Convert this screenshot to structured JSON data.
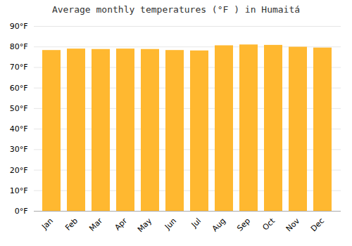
{
  "chart_data": {
    "type": "bar",
    "title": "Average monthly temperatures (°F ) in Humaitá",
    "categories": [
      "Jan",
      "Feb",
      "Mar",
      "Apr",
      "May",
      "Jun",
      "Jul",
      "Aug",
      "Sep",
      "Oct",
      "Nov",
      "Dec"
    ],
    "values": [
      78.3,
      79.0,
      78.8,
      79.0,
      78.8,
      78.3,
      78.1,
      80.6,
      81.0,
      80.8,
      79.9,
      79.5
    ],
    "color": "#FFB830",
    "ylim": [
      0,
      90
    ],
    "yticks": [
      {
        "value": 0,
        "label": "0°F"
      },
      {
        "value": 10,
        "label": "10°F"
      },
      {
        "value": 20,
        "label": "20°F"
      },
      {
        "value": 30,
        "label": "30°F"
      },
      {
        "value": 40,
        "label": "40°F"
      },
      {
        "value": 50,
        "label": "50°F"
      },
      {
        "value": 60,
        "label": "60°F"
      },
      {
        "value": 70,
        "label": "70°F"
      },
      {
        "value": 80,
        "label": "80°F"
      },
      {
        "value": 90,
        "label": "90°F"
      }
    ],
    "grid": true
  }
}
